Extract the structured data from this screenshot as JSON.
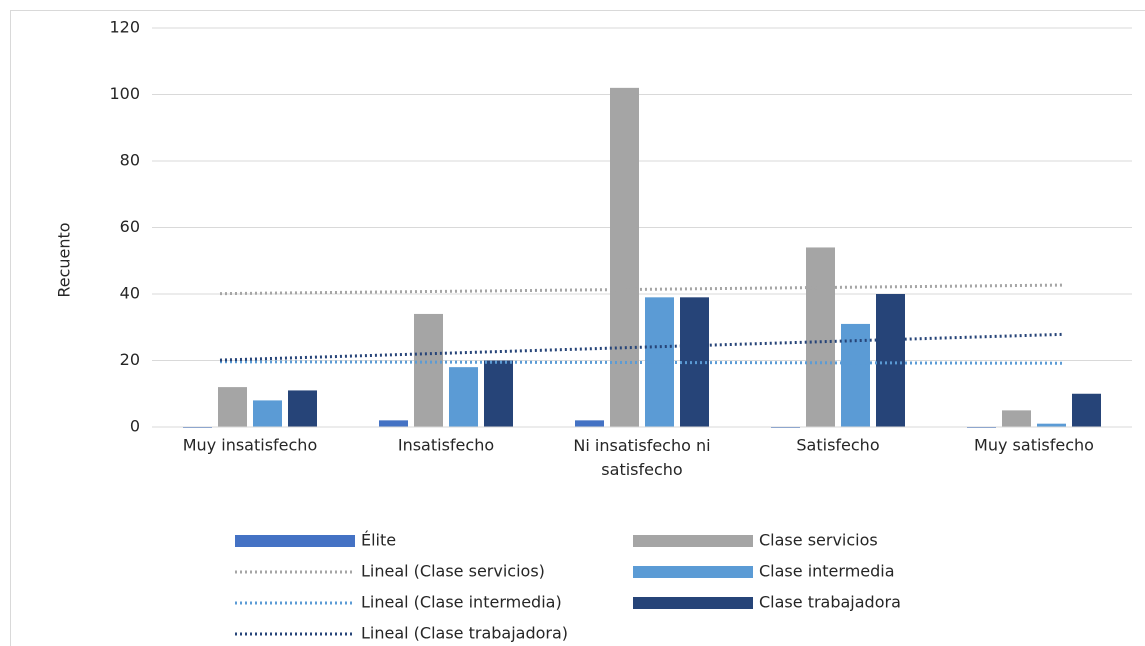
{
  "chart_data": {
    "type": "bar",
    "y_label": "Recuento",
    "categories": [
      "Muy insatisfecho",
      "Insatisfecho",
      "Ni insatisfecho ni satisfecho",
      "Satisfecho",
      "Muy satisfecho"
    ],
    "series": [
      {
        "name": "Élite",
        "color": "#4472c4",
        "values": [
          0,
          2,
          2,
          0,
          0
        ]
      },
      {
        "name": "Clase servicios",
        "color": "#a5a5a5",
        "values": [
          12,
          34,
          102,
          54,
          5
        ],
        "trendline": "Lineal (Clase servicios)"
      },
      {
        "name": "Clase intermedia",
        "color": "#5b9bd5",
        "values": [
          8,
          18,
          39,
          31,
          1
        ],
        "trendline": "Lineal (Clase intermedia)"
      },
      {
        "name": "Clase trabajadora",
        "color": "#264478",
        "values": [
          11,
          20,
          39,
          40,
          10
        ],
        "trendline": "Lineal (Clase trabajadora)"
      }
    ],
    "ylim": [
      0,
      120
    ],
    "yticks": [
      0,
      20,
      40,
      60,
      80,
      100,
      120
    ],
    "grid": true
  }
}
